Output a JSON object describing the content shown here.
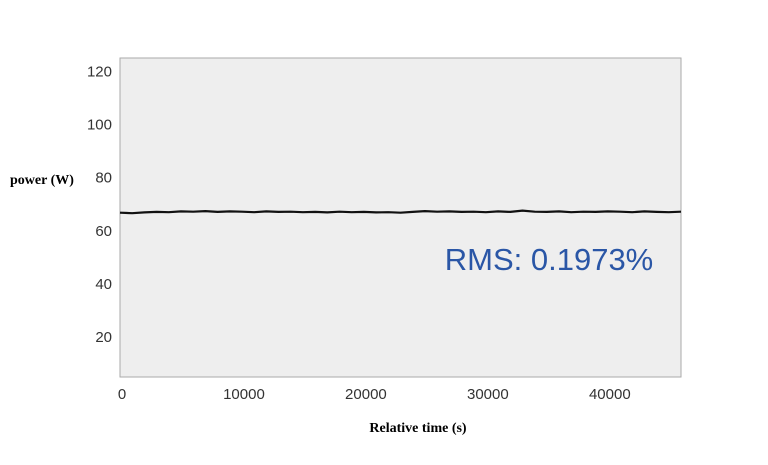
{
  "chart_data": {
    "type": "line",
    "title": "",
    "xlabel": "Relative time (s)",
    "ylabel": "power (W)",
    "xlim": [
      0,
      46000
    ],
    "ylim": [
      5,
      125
    ],
    "x_ticks": [
      0,
      10000,
      20000,
      30000,
      40000
    ],
    "y_ticks": [
      20,
      40,
      60,
      80,
      100,
      120
    ],
    "x_tick_labels": [
      "0",
      "10000",
      "20000",
      "30000",
      "40000"
    ],
    "y_tick_labels": [
      "20",
      "40",
      "60",
      "80",
      "100",
      "120"
    ],
    "grid": false,
    "legend": "none",
    "colors": {
      "plot_background": "#eeeeee",
      "line": "#111111",
      "annotation": "#2a56a6"
    },
    "annotation": "RMS: 0.1973%",
    "series": [
      {
        "x": [
          0,
          1000,
          2000,
          3000,
          4000,
          5000,
          6000,
          7000,
          8000,
          9000,
          10000,
          11000,
          12000,
          13000,
          14000,
          15000,
          16000,
          17000,
          18000,
          19000,
          20000,
          21000,
          22000,
          23000,
          24000,
          25000,
          26000,
          27000,
          28000,
          29000,
          30000,
          31000,
          32000,
          33000,
          34000,
          35000,
          36000,
          37000,
          38000,
          39000,
          40000,
          41000,
          42000,
          43000,
          44000,
          45000,
          46000
        ],
        "y": [
          66.8,
          66.6,
          66.9,
          67.1,
          67.0,
          67.3,
          67.2,
          67.4,
          67.1,
          67.3,
          67.2,
          67.0,
          67.3,
          67.1,
          67.2,
          67.0,
          67.1,
          66.9,
          67.2,
          67.0,
          67.1,
          66.9,
          67.0,
          66.8,
          67.1,
          67.4,
          67.2,
          67.3,
          67.1,
          67.2,
          67.0,
          67.3,
          67.1,
          67.6,
          67.2,
          67.1,
          67.3,
          67.0,
          67.2,
          67.1,
          67.3,
          67.2,
          67.0,
          67.3,
          67.1,
          67.0,
          67.2
        ]
      }
    ]
  }
}
